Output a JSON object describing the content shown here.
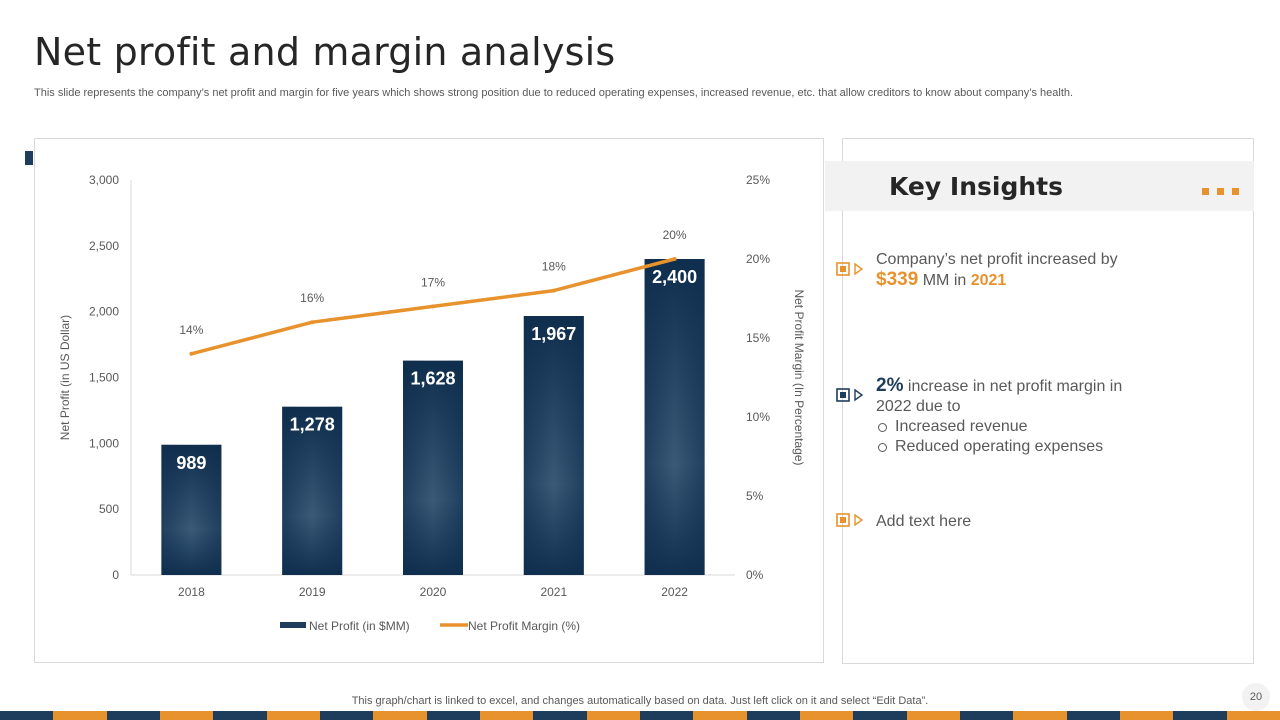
{
  "slide": {
    "title": "Net profit and margin analysis",
    "subtitle": "This slide represents the company’s net profit and margin for five years which shows strong position due to reduced operating expenses, increased revenue, etc. that allow creditors to know about company’s health.",
    "footer_note": "This graph/chart is linked to excel,  and changes automatically based on data. Just left click on it and select “Edit Data”.",
    "page_number": "20"
  },
  "colors": {
    "navy": "#1e3d5c",
    "orange": "#e8922e",
    "grey_text": "#595959"
  },
  "chart_data": {
    "type": "bar",
    "title": "",
    "categories": [
      "2018",
      "2019",
      "2020",
      "2021",
      "2022"
    ],
    "series": [
      {
        "name": "Net Profit (in $MM)",
        "kind": "bar",
        "axis": "left",
        "values": [
          989,
          1278,
          1628,
          1967,
          2400
        ],
        "labels": [
          "989",
          "1,278",
          "1,628",
          "1,967",
          "2,400"
        ]
      },
      {
        "name": "Net Profit Margin (%)",
        "kind": "line",
        "axis": "right",
        "values": [
          14,
          16,
          17,
          18,
          20
        ],
        "labels": [
          "14%",
          "16%",
          "17%",
          "18%",
          "20%"
        ]
      }
    ],
    "ylabel": "Net Profit (in US Dollar)",
    "y2label": "Net Profit Margin (In Percentage)",
    "ylim": [
      0,
      3000
    ],
    "y2lim": [
      0,
      25
    ],
    "yticks": [
      "0",
      "500",
      "1,000",
      "1,500",
      "2,000",
      "2,500",
      "3,000"
    ],
    "y2ticks": [
      "0%",
      "5%",
      "10%",
      "15%",
      "20%",
      "25%"
    ],
    "legend": "bottom-center",
    "legend_labels": [
      "Net Profit (in $MM)",
      "Net Profit Margin (%)"
    ]
  },
  "insights": {
    "title": "Key Insights",
    "item1": {
      "text_prefix": "Company’s net profit increased by",
      "amount": "$339",
      "mid": " MM in ",
      "year": "2021"
    },
    "item2": {
      "pct": "2%",
      "text_a": " increase in net profit margin in",
      "text_b": "2022 due to",
      "bullets": [
        "Increased revenue",
        "Reduced operating expenses"
      ]
    },
    "item3": {
      "text": "Add text here"
    }
  }
}
